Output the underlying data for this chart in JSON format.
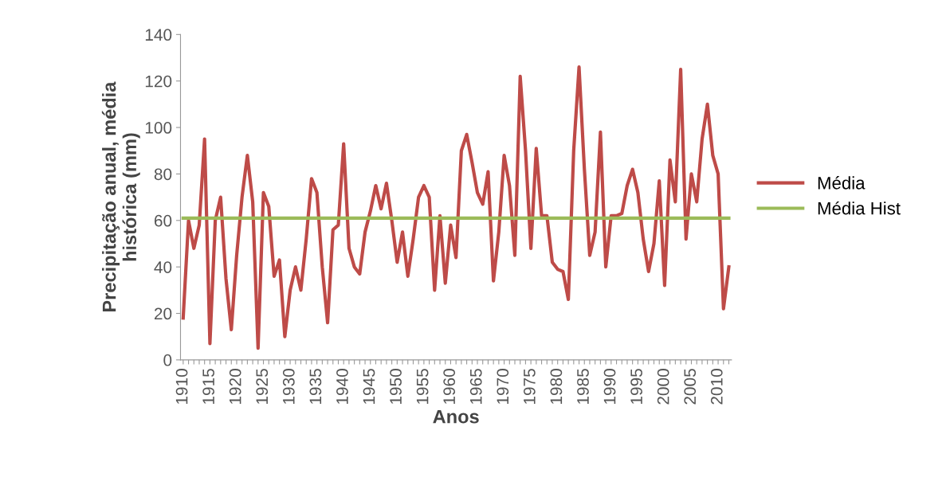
{
  "chart_data": {
    "type": "line",
    "xlabel": "Anos",
    "ylabel": "Precipitação anual, média\nhistórica (mm)",
    "categories": [
      "1910",
      null,
      null,
      null,
      null,
      "1915",
      null,
      null,
      null,
      null,
      "1920",
      null,
      null,
      null,
      null,
      "1925",
      null,
      null,
      null,
      null,
      "1930",
      null,
      null,
      null,
      null,
      "1935",
      null,
      null,
      null,
      null,
      "1940",
      null,
      null,
      null,
      null,
      "1945",
      null,
      null,
      null,
      null,
      "1950",
      null,
      null,
      null,
      null,
      "1955",
      null,
      null,
      null,
      null,
      "1960",
      null,
      null,
      null,
      null,
      "1965",
      null,
      null,
      null,
      null,
      "1970",
      null,
      null,
      null,
      null,
      "1975",
      null,
      null,
      null,
      null,
      "1980",
      null,
      null,
      null,
      null,
      "1985",
      null,
      null,
      null,
      null,
      "1990",
      null,
      null,
      null,
      null,
      "1995",
      null,
      null,
      null,
      null,
      "2000",
      null,
      null,
      null,
      null,
      "2005",
      null,
      null,
      null,
      null,
      "2010",
      null,
      null
    ],
    "series": [
      {
        "name": "Média",
        "color": "#be4b48",
        "values": [
          18,
          60,
          48,
          58,
          95,
          7,
          60,
          70,
          35,
          13,
          45,
          70,
          88,
          68,
          5,
          72,
          66,
          36,
          43,
          10,
          30,
          40,
          30,
          52,
          78,
          72,
          40,
          16,
          56,
          58,
          93,
          48,
          40,
          37,
          55,
          64,
          75,
          65,
          76,
          60,
          42,
          55,
          36,
          52,
          70,
          75,
          70,
          30,
          62,
          33,
          58,
          44,
          90,
          97,
          85,
          72,
          67,
          81,
          34,
          55,
          88,
          75,
          45,
          122,
          90,
          48,
          91,
          62,
          62,
          42,
          39,
          38,
          26,
          90,
          126,
          82,
          45,
          55,
          98,
          40,
          62,
          62,
          63,
          75,
          82,
          72,
          52,
          38,
          50,
          77,
          32,
          86,
          68,
          125,
          52,
          80,
          68,
          95,
          110,
          88,
          80,
          22,
          40
        ]
      },
      {
        "name": "Média Hist",
        "color": "#9bbb59",
        "values": [
          61,
          61,
          61,
          61,
          61,
          61,
          61,
          61,
          61,
          61,
          61,
          61,
          61,
          61,
          61,
          61,
          61,
          61,
          61,
          61,
          61,
          61,
          61,
          61,
          61,
          61,
          61,
          61,
          61,
          61,
          61,
          61,
          61,
          61,
          61,
          61,
          61,
          61,
          61,
          61,
          61,
          61,
          61,
          61,
          61,
          61,
          61,
          61,
          61,
          61,
          61,
          61,
          61,
          61,
          61,
          61,
          61,
          61,
          61,
          61,
          61,
          61,
          61,
          61,
          61,
          61,
          61,
          61,
          61,
          61,
          61,
          61,
          61,
          61,
          61,
          61,
          61,
          61,
          61,
          61,
          61,
          61,
          61,
          61,
          61,
          61,
          61,
          61,
          61,
          61,
          61,
          61,
          61,
          61,
          61,
          61,
          61,
          61,
          61,
          61,
          61,
          61,
          61
        ]
      }
    ],
    "ylim": [
      0,
      140
    ],
    "yticks": [
      0,
      20,
      40,
      60,
      80,
      100,
      120,
      140
    ],
    "grid": false,
    "legend": "right",
    "marker": "none",
    "line_style": "solid"
  }
}
